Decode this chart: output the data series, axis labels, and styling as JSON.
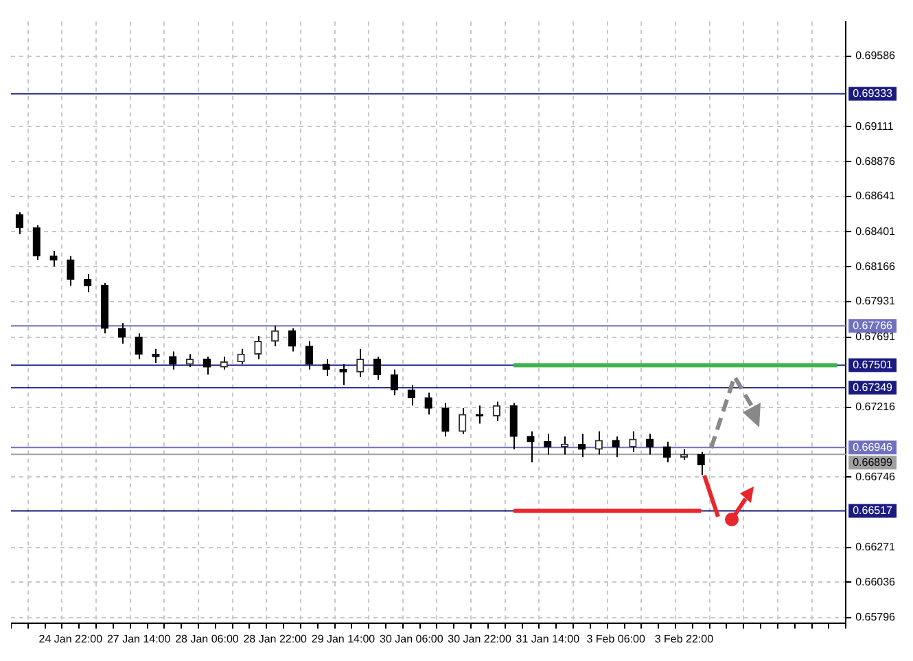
{
  "chart_data": {
    "type": "candlestick",
    "categories": [
      null,
      null,
      null,
      "24 Jan 22:00",
      null,
      null,
      null,
      "27 Jan 14:00",
      null,
      null,
      null,
      "28 Jan 06:00",
      null,
      null,
      null,
      "28 Jan 22:00",
      null,
      null,
      null,
      "29 Jan 14:00",
      null,
      null,
      null,
      "30 Jan 06:00",
      null,
      null,
      null,
      "30 Jan 22:00",
      null,
      null,
      null,
      "31 Jan 14:00",
      null,
      null,
      null,
      "3 Feb 06:00",
      null,
      null,
      null,
      "3 Feb 22:00",
      null,
      null,
      null,
      null,
      null,
      null,
      null,
      null,
      null
    ],
    "ohlc": [
      [
        0.68516,
        0.68533,
        0.68386,
        0.68429
      ],
      [
        0.68429,
        0.68446,
        0.68212,
        0.68238
      ],
      [
        0.68238,
        0.68272,
        0.68168,
        0.68212
      ],
      [
        0.68212,
        0.68238,
        0.68038,
        0.68081
      ],
      [
        0.68081,
        0.68116,
        0.67994,
        0.68038
      ],
      [
        0.68038,
        0.68055,
        0.67716,
        0.6775
      ],
      [
        0.6775,
        0.67785,
        0.67646,
        0.6769
      ],
      [
        0.6769,
        0.67716,
        0.67542,
        0.67576
      ],
      [
        0.67576,
        0.67611,
        0.67516,
        0.67559
      ],
      [
        0.67559,
        0.67594,
        0.67472,
        0.67507
      ],
      [
        0.67507,
        0.67576,
        0.67489,
        0.67542
      ],
      [
        0.67542,
        0.67559,
        0.67437,
        0.67489
      ],
      [
        0.67489,
        0.67559,
        0.67472,
        0.67524
      ],
      [
        0.67524,
        0.67611,
        0.67507,
        0.67576
      ],
      [
        0.67576,
        0.67698,
        0.67542,
        0.67663
      ],
      [
        0.67663,
        0.67768,
        0.67629,
        0.67733
      ],
      [
        0.67733,
        0.6775,
        0.67594,
        0.67629
      ],
      [
        0.67629,
        0.67663,
        0.67472,
        0.67507
      ],
      [
        0.67507,
        0.67542,
        0.67429,
        0.67472
      ],
      [
        0.67472,
        0.67507,
        0.67368,
        0.67455
      ],
      [
        0.67455,
        0.67611,
        0.6742,
        0.67542
      ],
      [
        0.67542,
        0.67559,
        0.67402,
        0.67437
      ],
      [
        0.67437,
        0.67472,
        0.67298,
        0.67333
      ],
      [
        0.67333,
        0.67368,
        0.67228,
        0.67281
      ],
      [
        0.67281,
        0.67315,
        0.67168,
        0.67211
      ],
      [
        0.67211,
        0.67246,
        0.6702,
        0.67054
      ],
      [
        0.67054,
        0.67211,
        0.67037,
        0.67168
      ],
      [
        0.67168,
        0.67228,
        0.67107,
        0.67159
      ],
      [
        0.67159,
        0.67255,
        0.67124,
        0.67228
      ],
      [
        0.67228,
        0.67246,
        0.66933,
        0.6702
      ],
      [
        0.6702,
        0.67054,
        0.66846,
        0.66985
      ],
      [
        0.66985,
        0.67037,
        0.66898,
        0.6695
      ],
      [
        0.6695,
        0.6702,
        0.66898,
        0.66967
      ],
      [
        0.66967,
        0.67037,
        0.6688,
        0.66933
      ],
      [
        0.66933,
        0.67054,
        0.66898,
        0.66994
      ],
      [
        0.66994,
        0.6702,
        0.6688,
        0.6695
      ],
      [
        0.6695,
        0.67054,
        0.66915,
        0.67002
      ],
      [
        0.67002,
        0.67037,
        0.66898,
        0.6695
      ],
      [
        0.6695,
        0.66985,
        0.66846,
        0.6688
      ],
      [
        0.6688,
        0.66933,
        0.66863,
        0.66898
      ],
      [
        0.66898,
        0.66915,
        0.66759,
        0.66828
      ],
      null,
      null,
      null,
      null,
      null,
      null,
      null,
      null
    ],
    "series": [
      {
        "type": "line",
        "color": "#3cb44b",
        "values": [
          null,
          null,
          null,
          null,
          null,
          null,
          null,
          null,
          null,
          null,
          null,
          null,
          null,
          null,
          null,
          null,
          null,
          null,
          null,
          null,
          null,
          null,
          null,
          null,
          null,
          null,
          null,
          null,
          null,
          0.67501,
          0.67501,
          0.67501,
          0.67501,
          0.67501,
          0.67501,
          0.67501,
          0.67501,
          0.67501,
          0.67501,
          0.67501,
          0.67501,
          0.67501,
          0.67501,
          0.67501,
          0.67501,
          0.67501,
          0.67501,
          0.67501,
          0.67501
        ]
      },
      {
        "type": "line",
        "color": "#e8262b",
        "values": [
          null,
          null,
          null,
          null,
          null,
          null,
          null,
          null,
          null,
          null,
          null,
          null,
          null,
          null,
          null,
          null,
          null,
          null,
          null,
          null,
          null,
          null,
          null,
          null,
          null,
          null,
          null,
          null,
          null,
          0.66517,
          0.66517,
          0.66517,
          0.66517,
          0.66517,
          0.66517,
          0.66517,
          0.66517,
          0.66517,
          0.66517,
          0.66517,
          0.66517,
          null,
          null,
          null,
          null,
          null,
          null,
          null,
          null
        ]
      }
    ],
    "ylim": [
      0.6576,
      0.6982
    ],
    "yticks": [
      0.69586,
      0.69111,
      0.68876,
      0.68641,
      0.68401,
      0.68166,
      0.67931,
      0.67691,
      0.67216,
      0.66746,
      0.66271,
      0.66036,
      0.65796
    ],
    "ref_lines": [
      {
        "axis": "y",
        "value": 0.69333,
        "label": "0.69333",
        "color": "#1a1a80"
      },
      {
        "axis": "y",
        "value": 0.67766,
        "label": "0.67766",
        "color": "#7070c0"
      },
      {
        "axis": "y",
        "value": 0.67501,
        "label": "0.67501",
        "color": "#1a1a80"
      },
      {
        "axis": "y",
        "value": 0.67349,
        "label": "0.67349",
        "color": "#1a1a80"
      },
      {
        "axis": "y",
        "value": 0.66946,
        "label": "0.66946",
        "color": "#7070c0"
      },
      {
        "axis": "y",
        "value": 0.66899,
        "label": "0.66899",
        "color": "#a0a0a0",
        "line_style": "solid"
      },
      {
        "axis": "y",
        "value": 0.66517,
        "label": "0.66517",
        "color": "#1a1a80"
      }
    ],
    "grid": true,
    "legend": false
  }
}
